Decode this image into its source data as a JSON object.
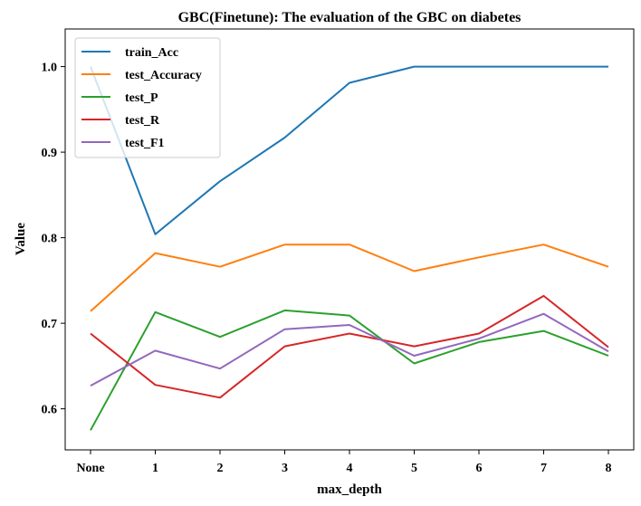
{
  "chart_data": {
    "type": "line",
    "title": "GBC(Finetune): The evaluation of the GBC on diabetes",
    "xlabel": "max_depth",
    "ylabel": "Value",
    "categories": [
      "None",
      "1",
      "2",
      "3",
      "4",
      "5",
      "6",
      "7",
      "8"
    ],
    "ylim": [
      0.552,
      1.044
    ],
    "yticks": [
      0.6,
      0.7,
      0.8,
      0.9,
      1.0
    ],
    "ytick_labels": [
      "0.6",
      "0.7",
      "0.8",
      "0.9",
      "1.0"
    ],
    "legend_position": "top-left",
    "grid": false,
    "series": [
      {
        "name": "train_Acc",
        "color": "#1f77b4",
        "values": [
          1.0,
          0.804,
          0.866,
          0.917,
          0.981,
          1.0,
          1.0,
          1.0,
          1.0
        ]
      },
      {
        "name": "test_Accuracy",
        "color": "#ff7f0e",
        "values": [
          0.714,
          0.782,
          0.766,
          0.792,
          0.792,
          0.761,
          0.777,
          0.792,
          0.766
        ]
      },
      {
        "name": "test_P",
        "color": "#2ca02c",
        "values": [
          0.575,
          0.713,
          0.684,
          0.715,
          0.709,
          0.653,
          0.678,
          0.691,
          0.662
        ]
      },
      {
        "name": "test_R",
        "color": "#d62728",
        "values": [
          0.688,
          0.628,
          0.613,
          0.673,
          0.688,
          0.673,
          0.688,
          0.732,
          0.672
        ]
      },
      {
        "name": "test_F1",
        "color": "#9467bd",
        "values": [
          0.627,
          0.668,
          0.647,
          0.693,
          0.698,
          0.662,
          0.682,
          0.711,
          0.667
        ]
      }
    ]
  }
}
